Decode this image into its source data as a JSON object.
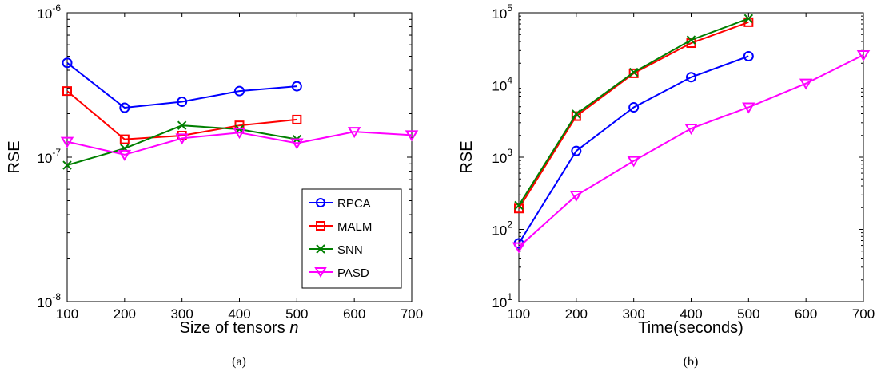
{
  "chart_data": [
    {
      "type": "line",
      "caption": "(a)",
      "xlabel": "Size of tensors ",
      "xlabel_italic": "n",
      "ylabel": "RSE",
      "xlim": [
        100,
        700
      ],
      "ylim": [
        1e-08,
        1e-06
      ],
      "yscale": "log",
      "grid": false,
      "legend_placement": "bottom-right",
      "x_ticks": [
        {
          "value": 100,
          "label": "100"
        },
        {
          "value": 200,
          "label": "200"
        },
        {
          "value": 300,
          "label": "300"
        },
        {
          "value": 400,
          "label": "400"
        },
        {
          "value": 500,
          "label": "500"
        },
        {
          "value": 600,
          "label": "600"
        },
        {
          "value": 700,
          "label": "700"
        }
      ],
      "y_ticks": [
        {
          "value": 1e-08,
          "base": "10",
          "exp": "-8"
        },
        {
          "value": 1e-07,
          "base": "10",
          "exp": "-7"
        },
        {
          "value": 1e-06,
          "base": "10",
          "exp": "-6"
        }
      ],
      "series": [
        {
          "name": "RPCA",
          "color": "#0000ff",
          "marker": "circle",
          "x": [
            100,
            200,
            300,
            400,
            500
          ],
          "y": [
            4.5e-07,
            2.2e-07,
            2.42e-07,
            2.87e-07,
            3.1e-07
          ]
        },
        {
          "name": "MALM",
          "color": "#ff0000",
          "marker": "square",
          "x": [
            100,
            200,
            300,
            400,
            500
          ],
          "y": [
            2.87e-07,
            1.33e-07,
            1.41e-07,
            1.66e-07,
            1.82e-07
          ]
        },
        {
          "name": "SNN",
          "color": "#007f00",
          "marker": "x",
          "x": [
            100,
            200,
            300,
            400,
            500
          ],
          "y": [
            8.8e-08,
            1.15e-07,
            1.66e-07,
            1.56e-07,
            1.33e-07
          ]
        },
        {
          "name": "PASD",
          "color": "#ff00ff",
          "marker": "triangle-down",
          "x": [
            100,
            200,
            300,
            400,
            500,
            600,
            700
          ],
          "y": [
            1.28e-07,
            1.04e-07,
            1.35e-07,
            1.48e-07,
            1.25e-07,
            1.5e-07,
            1.42e-07
          ]
        }
      ]
    },
    {
      "type": "line",
      "caption": "(b)",
      "xlabel": "Time(seconds)",
      "ylabel": "RSE",
      "xlim": [
        100,
        700
      ],
      "ylim": [
        10,
        100000
      ],
      "yscale": "log",
      "grid": false,
      "x_ticks": [
        {
          "value": 100,
          "label": "100"
        },
        {
          "value": 200,
          "label": "200"
        },
        {
          "value": 300,
          "label": "300"
        },
        {
          "value": 400,
          "label": "400"
        },
        {
          "value": 500,
          "label": "500"
        },
        {
          "value": 600,
          "label": "600"
        },
        {
          "value": 700,
          "label": "700"
        }
      ],
      "y_ticks": [
        {
          "value": 10,
          "base": "10",
          "exp": "1"
        },
        {
          "value": 100,
          "base": "10",
          "exp": "2"
        },
        {
          "value": 1000,
          "base": "10",
          "exp": "3"
        },
        {
          "value": 10000,
          "base": "10",
          "exp": "4"
        },
        {
          "value": 100000,
          "base": "10",
          "exp": "5"
        }
      ],
      "series": [
        {
          "name": "RPCA",
          "color": "#0000ff",
          "marker": "circle",
          "x": [
            100,
            200,
            300,
            400,
            500
          ],
          "y": [
            64,
            1220,
            4900,
            12800,
            25000
          ]
        },
        {
          "name": "MALM",
          "color": "#ff0000",
          "marker": "square",
          "x": [
            100,
            200,
            300,
            400,
            500
          ],
          "y": [
            195,
            3700,
            14500,
            38000,
            74000
          ]
        },
        {
          "name": "SNN",
          "color": "#007f00",
          "marker": "x",
          "x": [
            100,
            200,
            300,
            400,
            500
          ],
          "y": [
            215,
            3950,
            15000,
            42000,
            83000
          ]
        },
        {
          "name": "PASD",
          "color": "#ff00ff",
          "marker": "triangle-down",
          "x": [
            100,
            200,
            300,
            400,
            500,
            600,
            700
          ],
          "y": [
            57,
            295,
            890,
            2500,
            4900,
            10500,
            26000
          ]
        }
      ]
    }
  ]
}
